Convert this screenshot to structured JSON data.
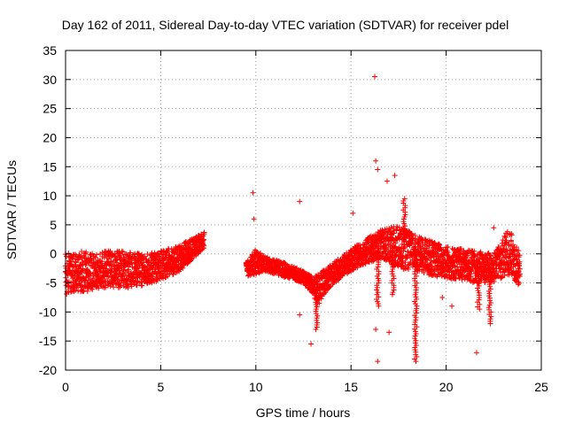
{
  "chart_data": {
    "type": "scatter",
    "title": "Day 162 of 2011, Sidereal Day-to-day VTEC variation (SDTVAR) for receiver pdel",
    "xlabel": "GPS time / hours",
    "ylabel": "SDTVAR / TECUs",
    "xlim": [
      0,
      25
    ],
    "ylim": [
      -20,
      35
    ],
    "xticks": [
      0,
      5,
      10,
      15,
      20,
      25
    ],
    "yticks": [
      -20,
      -15,
      -10,
      -5,
      0,
      5,
      10,
      15,
      20,
      25,
      30,
      35
    ],
    "xtick_labels": [
      "0",
      "5",
      "10",
      "15",
      "20",
      "25"
    ],
    "ytick_labels": [
      "-20",
      "-15",
      "-10",
      "-5",
      "0",
      "5",
      "10",
      "15",
      "20",
      "25",
      "30",
      "35"
    ],
    "grid": true,
    "marker": "+",
    "color": "#ff0000",
    "series": [
      {
        "name": "dense band",
        "band": [
          {
            "x": 0.0,
            "lo": -7.0,
            "hi": 0.0
          },
          {
            "x": 0.5,
            "lo": -6.5,
            "hi": 0.5
          },
          {
            "x": 1.0,
            "lo": -6.5,
            "hi": 0.5
          },
          {
            "x": 2.0,
            "lo": -6.0,
            "hi": 0.5
          },
          {
            "x": 3.0,
            "lo": -6.0,
            "hi": 0.5
          },
          {
            "x": 4.0,
            "lo": -5.5,
            "hi": 0.0
          },
          {
            "x": 5.0,
            "lo": -4.5,
            "hi": 0.5
          },
          {
            "x": 6.0,
            "lo": -3.0,
            "hi": 1.5
          },
          {
            "x": 6.8,
            "lo": -0.5,
            "hi": 3.0
          },
          {
            "x": 7.3,
            "lo": 1.0,
            "hi": 4.0
          },
          {
            "gap": true
          },
          {
            "x": 9.5,
            "lo": -4.0,
            "hi": -1.5
          },
          {
            "x": 10.0,
            "lo": -3.5,
            "hi": 1.0
          },
          {
            "x": 10.5,
            "lo": -3.0,
            "hi": -0.5
          },
          {
            "x": 11.5,
            "lo": -4.0,
            "hi": -1.5
          },
          {
            "x": 12.5,
            "lo": -5.0,
            "hi": -3.0
          },
          {
            "x": 13.0,
            "lo": -7.0,
            "hi": -4.0
          },
          {
            "x": 13.3,
            "lo": -9.0,
            "hi": -3.5
          },
          {
            "x": 13.8,
            "lo": -6.0,
            "hi": -2.0
          },
          {
            "x": 14.5,
            "lo": -4.0,
            "hi": -0.5
          },
          {
            "x": 15.5,
            "lo": -2.0,
            "hi": 2.0
          },
          {
            "x": 16.5,
            "lo": -1.0,
            "hi": 4.0
          },
          {
            "x": 17.5,
            "lo": -2.5,
            "hi": 5.0
          },
          {
            "x": 18.5,
            "lo": -3.0,
            "hi": 3.0
          },
          {
            "x": 19.5,
            "lo": -4.0,
            "hi": 2.0
          },
          {
            "x": 20.5,
            "lo": -4.5,
            "hi": 1.0
          },
          {
            "x": 21.5,
            "lo": -5.0,
            "hi": 0.5
          },
          {
            "x": 22.5,
            "lo": -5.0,
            "hi": 0.0
          },
          {
            "x": 23.3,
            "lo": -3.5,
            "hi": 4.5
          },
          {
            "x": 23.9,
            "lo": -6.0,
            "hi": 0.0
          }
        ],
        "spikes": [
          {
            "x": 13.2,
            "to": -13.0
          },
          {
            "x": 16.4,
            "to": -9.0
          },
          {
            "x": 17.2,
            "to": -7.0
          },
          {
            "x": 18.4,
            "to": -18.5
          },
          {
            "x": 21.7,
            "to": -9.5
          },
          {
            "x": 22.3,
            "to": -12.0
          },
          {
            "x": 17.8,
            "to": 9.5
          }
        ],
        "outliers": [
          {
            "x": 16.25,
            "y": 30.5
          },
          {
            "x": 16.3,
            "y": 16.0
          },
          {
            "x": 16.4,
            "y": 14.5
          },
          {
            "x": 17.3,
            "y": 13.5
          },
          {
            "x": 16.9,
            "y": 12.5
          },
          {
            "x": 9.85,
            "y": 10.5
          },
          {
            "x": 12.3,
            "y": 9.0
          },
          {
            "x": 9.9,
            "y": 6.0
          },
          {
            "x": 15.1,
            "y": 7.0
          },
          {
            "x": 22.5,
            "y": 4.5
          },
          {
            "x": 9.5,
            "y": -1.5
          },
          {
            "x": 12.3,
            "y": -10.5
          },
          {
            "x": 12.9,
            "y": -15.5
          },
          {
            "x": 16.3,
            "y": -13.0
          },
          {
            "x": 16.4,
            "y": -18.5
          },
          {
            "x": 17.0,
            "y": -13.5
          },
          {
            "x": 21.6,
            "y": -17.0
          },
          {
            "x": 20.3,
            "y": -9.0
          },
          {
            "x": 19.8,
            "y": -7.5
          }
        ]
      }
    ]
  }
}
